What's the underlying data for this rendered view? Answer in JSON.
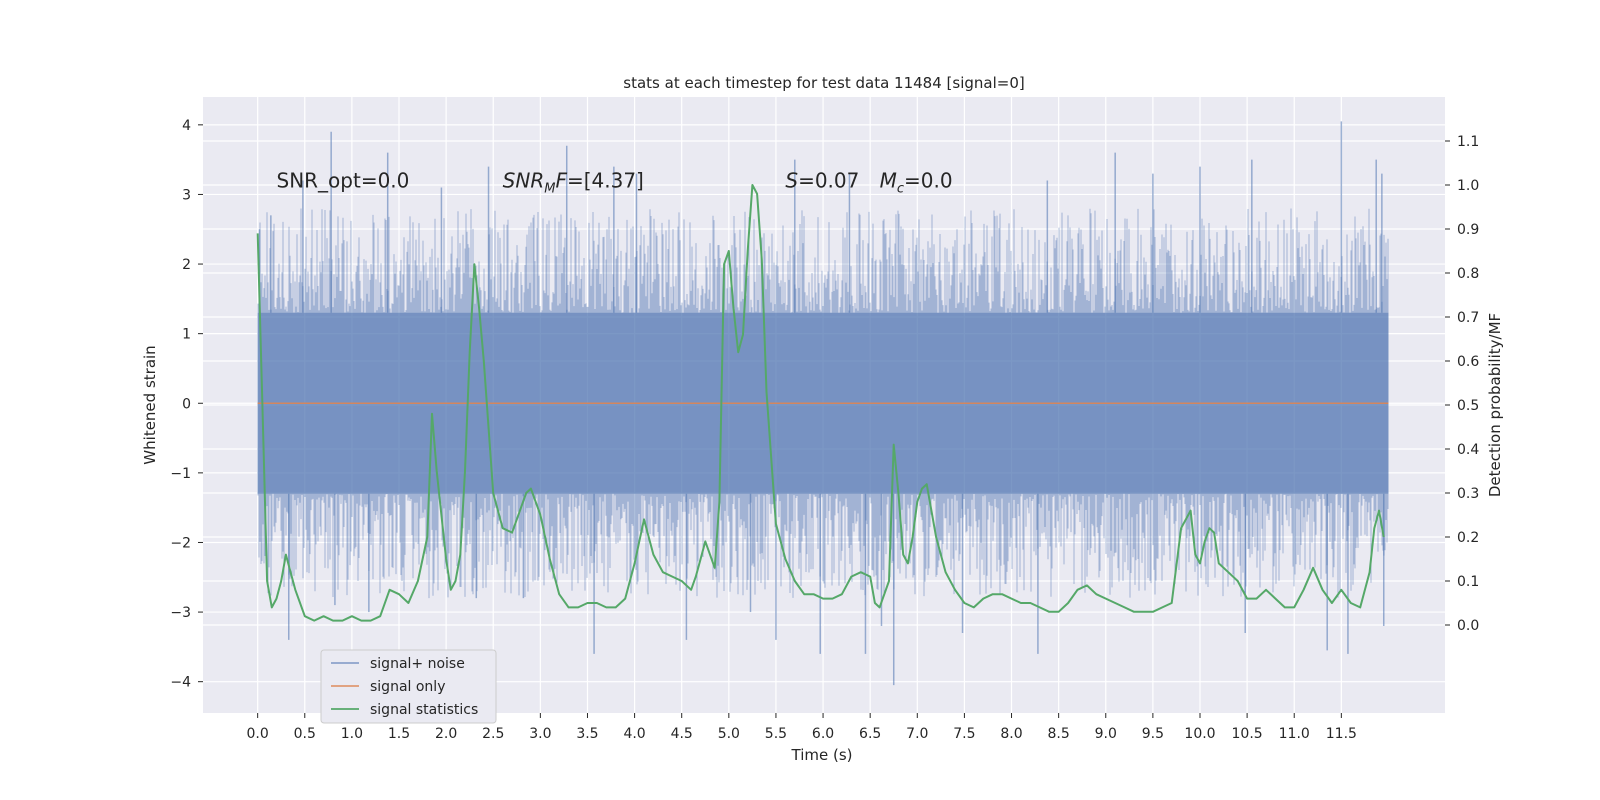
{
  "chart_data": {
    "type": "line",
    "title": "stats at each timestep for test data 11484 [signal=0]",
    "xlabel": "Time (s)",
    "ylabel": "Whitened strain",
    "y2label": "Detection probability/MF",
    "xlim": [
      -0.58,
      12.6
    ],
    "ylim": [
      -4.45,
      4.4
    ],
    "y2lim": [
      -0.2,
      1.2
    ],
    "x_ticks": [
      "0.0",
      "0.5",
      "1.0",
      "1.5",
      "2.0",
      "2.5",
      "3.0",
      "3.5",
      "4.0",
      "4.5",
      "5.0",
      "5.5",
      "6.0",
      "6.5",
      "7.0",
      "7.5",
      "8.0",
      "8.5",
      "9.0",
      "9.5",
      "10.0",
      "10.5",
      "11.0",
      "11.5"
    ],
    "y_ticks": [
      "4",
      "3",
      "2",
      "1",
      "0",
      "−1",
      "−2",
      "−3",
      "−4"
    ],
    "y2_ticks": [
      "1.1",
      "1.0",
      "0.9",
      "0.8",
      "0.7",
      "0.6",
      "0.5",
      "0.4",
      "0.3",
      "0.2",
      "0.1",
      "0.0"
    ],
    "grid": true,
    "legend_position": "bottom-left",
    "annotations": [
      {
        "text": "SNR_opt=0.0",
        "x": 0.2,
        "y": 3.2
      },
      {
        "text": "SNR",
        "sub": "M",
        "tail": "F=[4.37]",
        "x": 2.6,
        "y": 3.2
      },
      {
        "text": "S",
        "tail": "=0.07",
        "x": 5.6,
        "y": 3.2
      },
      {
        "text": "M",
        "sub": "c",
        "tail": "=0.0",
        "x": 6.6,
        "y": 3.2
      }
    ],
    "series": [
      {
        "name": "signal+ noise",
        "color": "#4c72b0",
        "opacity": 0.5,
        "x_range": [
          0.0,
          12.0
        ],
        "core_band": [
          -1.3,
          1.3
        ],
        "typical_extremes": [
          -2.8,
          2.8
        ],
        "spikes": [
          {
            "x": 0.02,
            "y": 2.5
          },
          {
            "x": 0.14,
            "y": 2.7
          },
          {
            "x": 0.33,
            "y": -3.4
          },
          {
            "x": 0.48,
            "y": 3.2
          },
          {
            "x": 0.78,
            "y": 3.9
          },
          {
            "x": 0.82,
            "y": -2.9
          },
          {
            "x": 1.18,
            "y": -3.0
          },
          {
            "x": 1.38,
            "y": 3.6
          },
          {
            "x": 1.95,
            "y": 3.1
          },
          {
            "x": 2.32,
            "y": -2.8
          },
          {
            "x": 2.45,
            "y": 3.4
          },
          {
            "x": 2.82,
            "y": -2.8
          },
          {
            "x": 3.28,
            "y": 3.7
          },
          {
            "x": 3.57,
            "y": -3.6
          },
          {
            "x": 3.78,
            "y": 3.4
          },
          {
            "x": 4.02,
            "y": 3.3
          },
          {
            "x": 4.55,
            "y": -3.4
          },
          {
            "x": 5.23,
            "y": -3.0
          },
          {
            "x": 5.5,
            "y": -3.4
          },
          {
            "x": 5.7,
            "y": 3.5
          },
          {
            "x": 5.97,
            "y": -3.6
          },
          {
            "x": 6.28,
            "y": 3.3
          },
          {
            "x": 6.45,
            "y": -3.6
          },
          {
            "x": 6.62,
            "y": -3.2
          },
          {
            "x": 6.75,
            "y": -4.05
          },
          {
            "x": 7.48,
            "y": -3.3
          },
          {
            "x": 8.28,
            "y": -3.6
          },
          {
            "x": 8.38,
            "y": 3.2
          },
          {
            "x": 9.1,
            "y": 3.6
          },
          {
            "x": 9.5,
            "y": 3.3
          },
          {
            "x": 10.0,
            "y": 3.4
          },
          {
            "x": 10.48,
            "y": -3.3
          },
          {
            "x": 10.55,
            "y": 3.5
          },
          {
            "x": 11.35,
            "y": -3.55
          },
          {
            "x": 11.5,
            "y": 4.05
          },
          {
            "x": 11.57,
            "y": -3.6
          },
          {
            "x": 11.87,
            "y": 3.5
          },
          {
            "x": 11.93,
            "y": 3.3
          },
          {
            "x": 11.95,
            "y": -3.2
          }
        ]
      },
      {
        "name": "signal only",
        "color": "#dd8452",
        "x": [
          0.0,
          12.0
        ],
        "y": [
          0.0,
          0.0
        ]
      },
      {
        "name": "signal statistics",
        "color": "#55a868",
        "axis": "right",
        "x": [
          0.0,
          0.05,
          0.1,
          0.15,
          0.2,
          0.25,
          0.3,
          0.35,
          0.4,
          0.5,
          0.6,
          0.7,
          0.8,
          0.9,
          1.0,
          1.1,
          1.2,
          1.3,
          1.4,
          1.5,
          1.6,
          1.7,
          1.8,
          1.85,
          1.9,
          2.0,
          2.05,
          2.1,
          2.15,
          2.2,
          2.25,
          2.3,
          2.35,
          2.4,
          2.5,
          2.6,
          2.7,
          2.75,
          2.85,
          2.9,
          3.0,
          3.1,
          3.2,
          3.3,
          3.4,
          3.5,
          3.6,
          3.7,
          3.8,
          3.9,
          4.0,
          4.1,
          4.2,
          4.3,
          4.4,
          4.5,
          4.6,
          4.65,
          4.7,
          4.75,
          4.8,
          4.85,
          4.9,
          4.95,
          5.0,
          5.05,
          5.1,
          5.15,
          5.2,
          5.25,
          5.3,
          5.35,
          5.4,
          5.5,
          5.6,
          5.7,
          5.8,
          5.9,
          6.0,
          6.1,
          6.2,
          6.3,
          6.4,
          6.5,
          6.55,
          6.6,
          6.7,
          6.75,
          6.8,
          6.85,
          6.9,
          6.95,
          7.0,
          7.05,
          7.1,
          7.2,
          7.3,
          7.4,
          7.5,
          7.6,
          7.7,
          7.8,
          7.9,
          8.0,
          8.1,
          8.2,
          8.3,
          8.4,
          8.5,
          8.6,
          8.7,
          8.8,
          8.9,
          9.0,
          9.1,
          9.2,
          9.3,
          9.4,
          9.5,
          9.6,
          9.7,
          9.8,
          9.9,
          9.95,
          10.0,
          10.05,
          10.1,
          10.15,
          10.2,
          10.3,
          10.4,
          10.5,
          10.6,
          10.7,
          10.8,
          10.9,
          11.0,
          11.1,
          11.2,
          11.3,
          11.4,
          11.5,
          11.6,
          11.7,
          11.8,
          11.85,
          11.9,
          11.95
        ],
        "y": [
          0.89,
          0.5,
          0.1,
          0.04,
          0.06,
          0.1,
          0.16,
          0.12,
          0.08,
          0.02,
          0.01,
          0.02,
          0.01,
          0.01,
          0.02,
          0.01,
          0.01,
          0.02,
          0.08,
          0.07,
          0.05,
          0.1,
          0.2,
          0.48,
          0.35,
          0.15,
          0.08,
          0.1,
          0.16,
          0.35,
          0.62,
          0.82,
          0.72,
          0.6,
          0.3,
          0.22,
          0.21,
          0.24,
          0.3,
          0.31,
          0.25,
          0.15,
          0.07,
          0.04,
          0.04,
          0.05,
          0.05,
          0.04,
          0.04,
          0.06,
          0.14,
          0.24,
          0.16,
          0.12,
          0.11,
          0.1,
          0.08,
          0.11,
          0.15,
          0.19,
          0.16,
          0.13,
          0.28,
          0.82,
          0.85,
          0.72,
          0.62,
          0.66,
          0.85,
          1.0,
          0.98,
          0.83,
          0.53,
          0.23,
          0.15,
          0.1,
          0.07,
          0.07,
          0.06,
          0.06,
          0.07,
          0.11,
          0.12,
          0.11,
          0.05,
          0.04,
          0.1,
          0.41,
          0.3,
          0.16,
          0.14,
          0.2,
          0.28,
          0.31,
          0.32,
          0.2,
          0.12,
          0.08,
          0.05,
          0.04,
          0.06,
          0.07,
          0.07,
          0.06,
          0.05,
          0.05,
          0.04,
          0.03,
          0.03,
          0.05,
          0.08,
          0.09,
          0.07,
          0.06,
          0.05,
          0.04,
          0.03,
          0.03,
          0.03,
          0.04,
          0.05,
          0.22,
          0.26,
          0.16,
          0.14,
          0.19,
          0.22,
          0.21,
          0.14,
          0.12,
          0.1,
          0.06,
          0.06,
          0.08,
          0.06,
          0.04,
          0.04,
          0.08,
          0.13,
          0.08,
          0.05,
          0.08,
          0.05,
          0.04,
          0.12,
          0.22,
          0.26,
          0.2
        ]
      }
    ]
  }
}
